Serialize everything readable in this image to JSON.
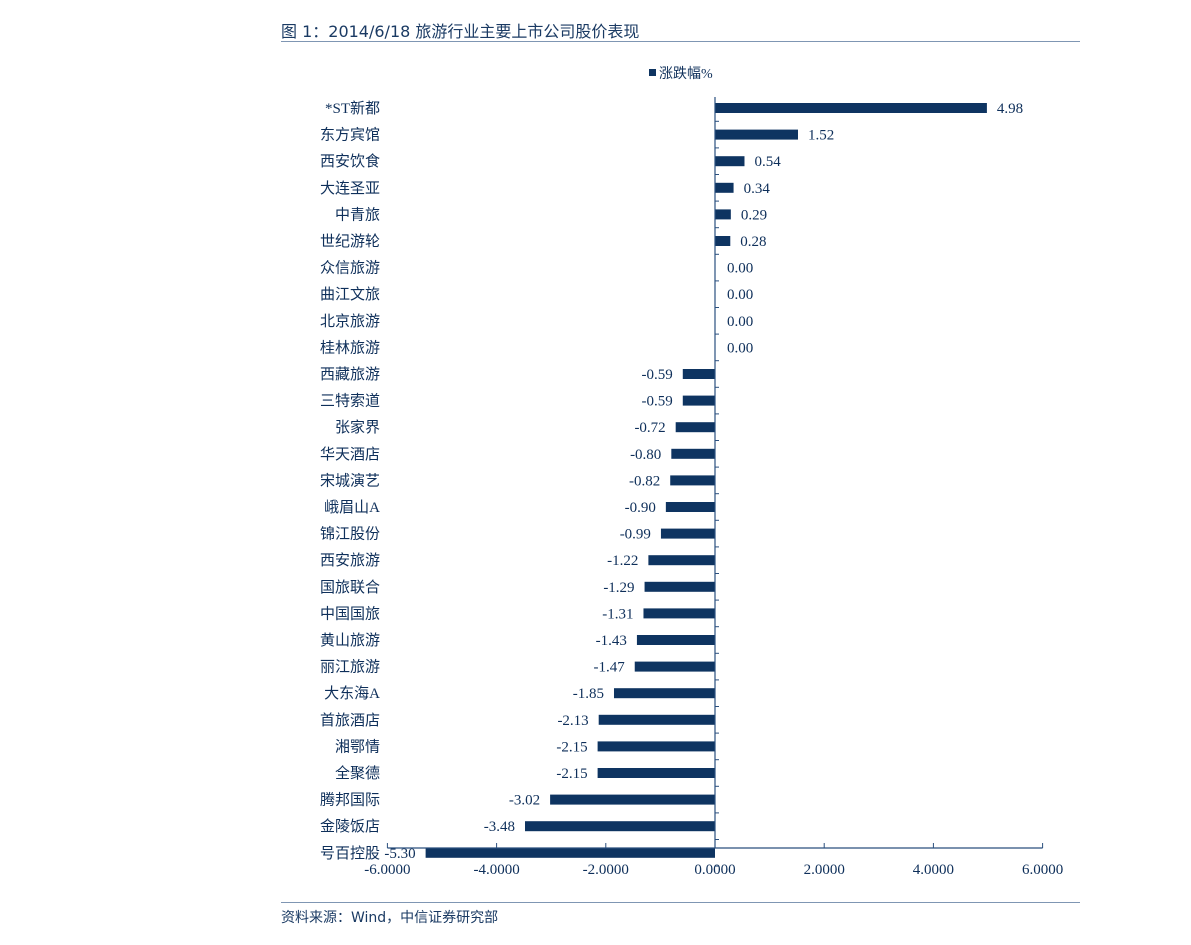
{
  "header": {
    "title": "图 1：2014/6/18 旅游行业主要上市公司股价表现"
  },
  "footer": {
    "source": "资料来源：Wind，中信证券研究部"
  },
  "colors": {
    "bar": "#0e3461",
    "text": "#0e2f5a",
    "axis": "#2a4f7e",
    "rule": "#7f96b3"
  },
  "chart_data": {
    "type": "bar",
    "orientation": "horizontal",
    "legend": {
      "label": "涨跌幅%",
      "position": "top"
    },
    "categories": [
      "*ST新都",
      "东方宾馆",
      "西安饮食",
      "大连圣亚",
      "中青旅",
      "世纪游轮",
      "众信旅游",
      "曲江文旅",
      "北京旅游",
      "桂林旅游",
      "西藏旅游",
      "三特索道",
      "张家界",
      "华天酒店",
      "宋城演艺",
      "峨眉山A",
      "锦江股份",
      "西安旅游",
      "国旅联合",
      "中国国旅",
      "黄山旅游",
      "丽江旅游",
      "大东海A",
      "首旅酒店",
      "湘鄂情",
      "全聚德",
      "腾邦国际",
      "金陵饭店",
      "号百控股"
    ],
    "series": [
      {
        "name": "涨跌幅%",
        "values": [
          4.98,
          1.52,
          0.54,
          0.34,
          0.29,
          0.28,
          0.0,
          0.0,
          0.0,
          0.0,
          -0.59,
          -0.59,
          -0.72,
          -0.8,
          -0.82,
          -0.9,
          -0.99,
          -1.22,
          -1.29,
          -1.31,
          -1.43,
          -1.47,
          -1.85,
          -2.13,
          -2.15,
          -2.15,
          -3.02,
          -3.48,
          -5.3
        ]
      }
    ],
    "data_labels": [
      "4.98",
      "1.52",
      "0.54",
      "0.34",
      "0.29",
      "0.28",
      "0.00",
      "0.00",
      "0.00",
      "0.00",
      "-0.59",
      "-0.59",
      "-0.72",
      "-0.80",
      "-0.82",
      "-0.90",
      "-0.99",
      "-1.22",
      "-1.29",
      "-1.31",
      "-1.43",
      "-1.47",
      "-1.85",
      "-2.13",
      "-2.15",
      "-2.15",
      "-3.02",
      "-3.48",
      "-5.30"
    ],
    "xlim": [
      -6,
      6
    ],
    "xticks": [
      -6,
      -4,
      -2,
      0,
      2,
      4,
      6
    ],
    "xtick_labels": [
      "-6.0000",
      "-4.0000",
      "-2.0000",
      "0.0000",
      "2.0000",
      "4.0000",
      "6.0000"
    ],
    "grid": false
  }
}
